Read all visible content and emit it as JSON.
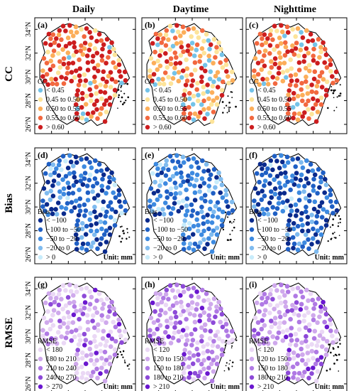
{
  "columns": [
    "Daily",
    "Daytime",
    "Nighttime"
  ],
  "rows": [
    {
      "label": "CC",
      "panels": [
        "(a)",
        "(b)",
        "(c)"
      ],
      "legend_title": "CC",
      "unit": "",
      "entries": [
        [
          "< 0.45",
          "0.45 to 0.50",
          "0.50 to 0.55",
          "0.55 to 0.60",
          "> 0.60"
        ],
        [
          "< 0.45",
          "0.45 to 0.50",
          "0.50 to 0.55",
          "0.55 to 0.60",
          "> 0.60"
        ],
        [
          "< 0.45",
          "0.45 to 0.50",
          "0.50 to 0.55",
          "0.55 to 0.60",
          "> 0.60"
        ]
      ],
      "colors": [
        "#74c3e8",
        "#fde49a",
        "#fcae5a",
        "#f2683f",
        "#cc1d1f"
      ],
      "class_weights": [
        [
          0.05,
          0.1,
          0.12,
          0.18,
          0.55
        ],
        [
          0.18,
          0.2,
          0.24,
          0.22,
          0.16
        ],
        [
          0.08,
          0.14,
          0.18,
          0.25,
          0.35
        ]
      ]
    },
    {
      "label": "Bias",
      "panels": [
        "(d)",
        "(e)",
        "(f)"
      ],
      "legend_title": "Bias",
      "unit": "Unit: mm",
      "entries": [
        [
          "< −100",
          "−100 to −50",
          "−50 to −20",
          "−20 to 0",
          "> 0"
        ],
        [
          "< −100",
          "−100 to −50",
          "−50 to −20",
          "−20 to 0",
          "> 0"
        ],
        [
          "< −100",
          "−100 to −50",
          "−50 to −20",
          "−20 to 0",
          "> 0"
        ]
      ],
      "colors": [
        "#0a2a8c",
        "#1f5fc4",
        "#3d8ae0",
        "#7fbbef",
        "#c8ecfb"
      ],
      "class_weights": [
        [
          0.3,
          0.32,
          0.18,
          0.12,
          0.08
        ],
        [
          0.08,
          0.3,
          0.4,
          0.16,
          0.06
        ],
        [
          0.35,
          0.35,
          0.18,
          0.08,
          0.04
        ]
      ]
    },
    {
      "label": "RMSE",
      "panels": [
        "(g)",
        "(h)",
        "(i)"
      ],
      "legend_title": "RMSE",
      "unit": "Unit: mm",
      "entries": [
        [
          "< 180",
          "180 to 210",
          "210 to 240",
          "240 to 270",
          "> 270"
        ],
        [
          "< 120",
          "120 to 150",
          "150 to 180",
          "180 to 210",
          "> 210"
        ],
        [
          "< 120",
          "120 to 150",
          "150 to 180",
          "180 to 210",
          "> 210"
        ]
      ],
      "colors": [
        "#ead8f5",
        "#cfa9ec",
        "#b07ae4",
        "#8d4ad8",
        "#6a17cf"
      ],
      "class_weights": [
        [
          0.3,
          0.38,
          0.18,
          0.09,
          0.05
        ],
        [
          0.18,
          0.35,
          0.28,
          0.13,
          0.06
        ],
        [
          0.2,
          0.34,
          0.27,
          0.13,
          0.06
        ]
      ]
    }
  ],
  "lat_ticks": [
    "26°N",
    "28°N",
    "30°N",
    "32°N",
    "34°N"
  ]
}
